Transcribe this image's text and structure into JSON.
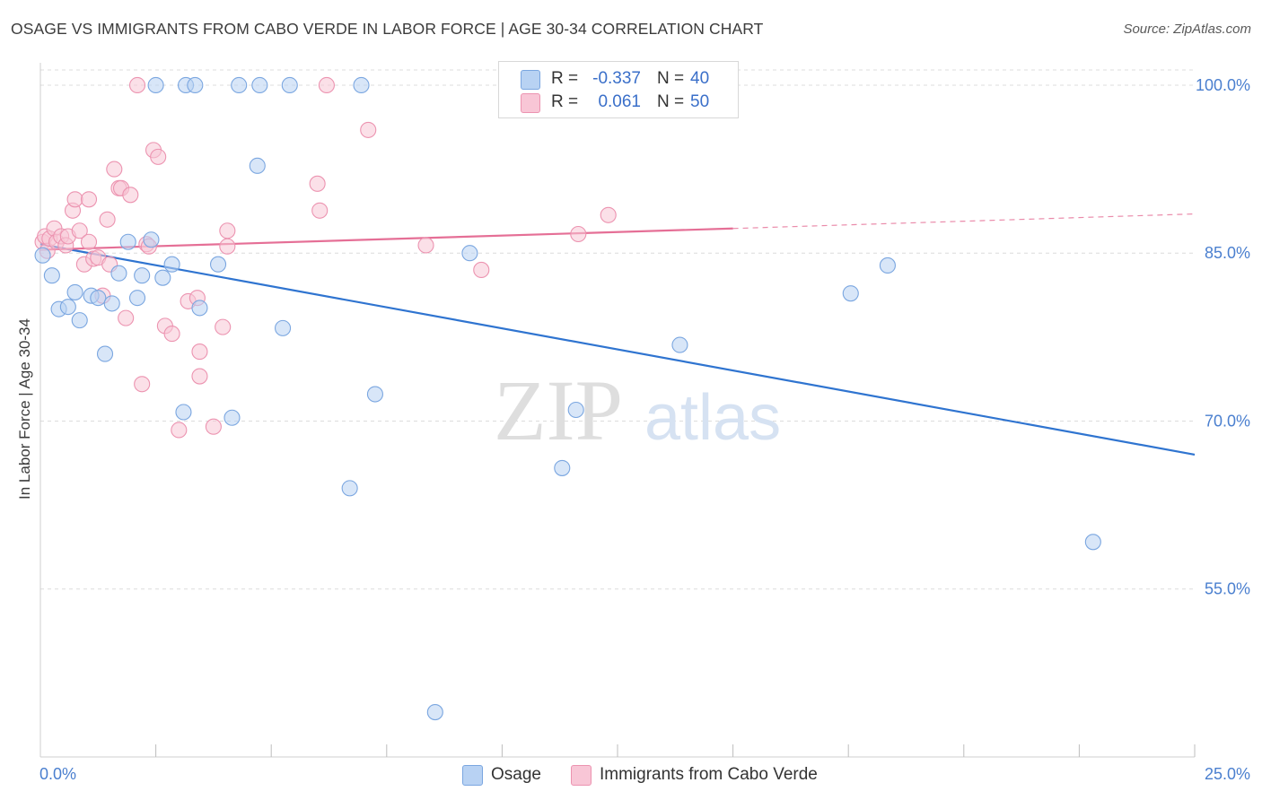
{
  "title": "OSAGE VS IMMIGRANTS FROM CABO VERDE IN LABOR FORCE | AGE 30-34 CORRELATION CHART",
  "source": "Source: ZipAtlas.com",
  "watermark": {
    "zip": "ZIP",
    "atlas": "atlas"
  },
  "legend": {
    "rows": [
      {
        "r_label": "R =",
        "r_value": "-0.337",
        "n_label": "N =",
        "n_value": "40"
      },
      {
        "r_label": "R =",
        "r_value": "0.061",
        "n_label": "N =",
        "n_value": "50"
      }
    ]
  },
  "bottom_legend": {
    "items": [
      "Osage",
      "Immigrants from Cabo Verde"
    ]
  },
  "colors": {
    "osage_fill": "#b8d2f3",
    "osage_stroke": "#7aa6e0",
    "osage_line": "#2f74d0",
    "cabo_fill": "#f8c6d6",
    "cabo_stroke": "#ec93b0",
    "cabo_line": "#e56f96",
    "tick_text": "#4a7fcf",
    "grid": "#dcdcdc"
  },
  "chart_data": {
    "type": "scatter",
    "title": "OSAGE VS IMMIGRANTS FROM CABO VERDE IN LABOR FORCE | AGE 30-34 CORRELATION CHART",
    "xlabel": "",
    "ylabel": "In Labor Force | Age 30-34",
    "xlim": [
      0,
      25
    ],
    "ylim": [
      40,
      102
    ],
    "x_tick_labels": [
      "0.0%",
      "25.0%"
    ],
    "y_ticks": [
      55,
      70,
      85,
      100
    ],
    "y_tick_labels": [
      "55.0%",
      "70.0%",
      "85.0%",
      "100.0%"
    ],
    "grid": true,
    "legend_position": "top-center",
    "series": [
      {
        "name": "Osage",
        "r": -0.337,
        "n": 40,
        "trend": {
          "x": [
            0,
            25
          ],
          "y": [
            85.8,
            67.0
          ]
        },
        "points": [
          [
            0.05,
            84.8
          ],
          [
            0.25,
            83.0
          ],
          [
            0.4,
            80.0
          ],
          [
            0.6,
            80.2
          ],
          [
            0.75,
            81.5
          ],
          [
            0.85,
            79.0
          ],
          [
            1.1,
            81.2
          ],
          [
            1.25,
            81.0
          ],
          [
            1.4,
            76.0
          ],
          [
            1.55,
            80.5
          ],
          [
            1.7,
            83.2
          ],
          [
            1.9,
            86.0
          ],
          [
            2.1,
            81.0
          ],
          [
            2.2,
            83.0
          ],
          [
            2.4,
            86.2
          ],
          [
            2.5,
            100.0
          ],
          [
            2.65,
            82.8
          ],
          [
            2.85,
            84.0
          ],
          [
            3.1,
            70.8
          ],
          [
            3.15,
            100.0
          ],
          [
            3.35,
            100.0
          ],
          [
            3.45,
            80.1
          ],
          [
            3.85,
            84.0
          ],
          [
            4.15,
            70.3
          ],
          [
            4.3,
            100.0
          ],
          [
            4.75,
            100.0
          ],
          [
            4.7,
            92.8
          ],
          [
            5.25,
            78.3
          ],
          [
            5.4,
            100.0
          ],
          [
            6.7,
            64.0
          ],
          [
            6.95,
            100.0
          ],
          [
            7.25,
            72.4
          ],
          [
            8.55,
            44.0
          ],
          [
            9.3,
            85.0
          ],
          [
            11.3,
            65.8
          ],
          [
            11.6,
            71.0
          ],
          [
            13.85,
            76.8
          ],
          [
            17.55,
            81.4
          ],
          [
            18.35,
            83.9
          ],
          [
            22.8,
            59.2
          ]
        ]
      },
      {
        "name": "Immigrants from Cabo Verde",
        "r": 0.061,
        "n": 50,
        "trend": {
          "x": [
            0,
            15
          ],
          "y": [
            85.3,
            87.2
          ]
        },
        "trend_dashed": {
          "x": [
            15,
            25
          ],
          "y": [
            87.2,
            88.5
          ]
        },
        "points": [
          [
            0.05,
            86.0
          ],
          [
            0.1,
            86.5
          ],
          [
            0.15,
            85.2
          ],
          [
            0.2,
            86.3
          ],
          [
            0.3,
            87.2
          ],
          [
            0.35,
            86.0
          ],
          [
            0.45,
            86.5
          ],
          [
            0.55,
            85.7
          ],
          [
            0.6,
            86.5
          ],
          [
            0.7,
            88.8
          ],
          [
            0.75,
            89.8
          ],
          [
            0.85,
            87.0
          ],
          [
            0.95,
            84.0
          ],
          [
            1.05,
            89.8
          ],
          [
            1.15,
            84.5
          ],
          [
            1.25,
            84.6
          ],
          [
            1.35,
            81.2
          ],
          [
            1.45,
            88.0
          ],
          [
            1.5,
            84.0
          ],
          [
            1.6,
            92.5
          ],
          [
            1.7,
            90.8
          ],
          [
            1.75,
            90.8
          ],
          [
            1.85,
            79.2
          ],
          [
            1.95,
            90.2
          ],
          [
            2.1,
            100.0
          ],
          [
            2.2,
            73.3
          ],
          [
            2.3,
            85.8
          ],
          [
            2.35,
            85.6
          ],
          [
            2.45,
            94.2
          ],
          [
            2.55,
            93.6
          ],
          [
            2.7,
            78.5
          ],
          [
            2.85,
            77.8
          ],
          [
            3.0,
            69.2
          ],
          [
            3.2,
            80.7
          ],
          [
            3.4,
            81.0
          ],
          [
            3.45,
            76.2
          ],
          [
            3.45,
            74.0
          ],
          [
            3.75,
            69.5
          ],
          [
            3.95,
            78.4
          ],
          [
            4.05,
            87.0
          ],
          [
            4.05,
            85.6
          ],
          [
            6.0,
            91.2
          ],
          [
            6.05,
            88.8
          ],
          [
            6.2,
            100.0
          ],
          [
            7.1,
            96.0
          ],
          [
            8.35,
            85.7
          ],
          [
            9.55,
            83.5
          ],
          [
            11.65,
            86.7
          ],
          [
            12.3,
            88.4
          ],
          [
            1.05,
            86.0
          ]
        ]
      }
    ]
  }
}
